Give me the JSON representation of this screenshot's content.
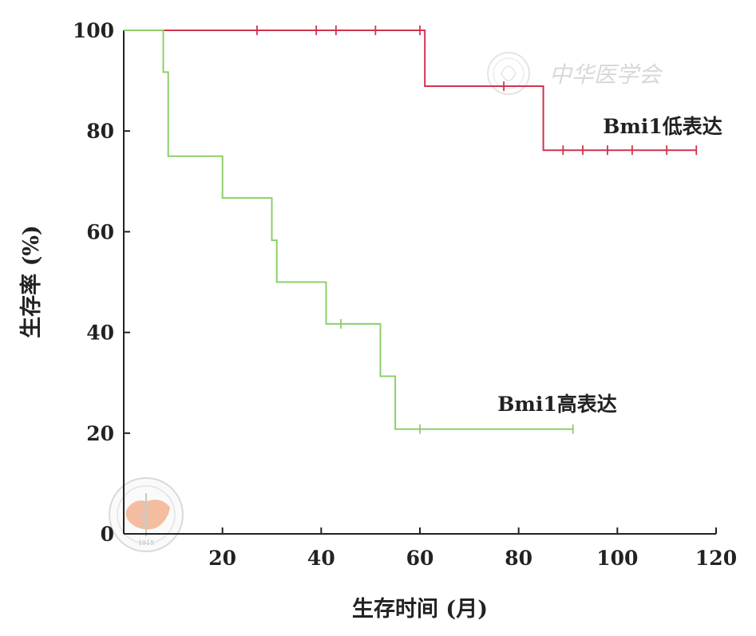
{
  "chart_data": {
    "type": "line",
    "subtype": "kaplan-meier step",
    "xlabel": "生存时间 (月)",
    "ylabel": "生存率 (%)",
    "xlim": [
      0,
      120
    ],
    "ylim": [
      0,
      100
    ],
    "xticks": [
      20,
      40,
      60,
      80,
      100,
      120
    ],
    "yticks": [
      0,
      20,
      40,
      60,
      80,
      100
    ],
    "series": [
      {
        "name": "Bmi1低表达",
        "color": "#d0344a",
        "steps": [
          [
            0,
            100
          ],
          [
            61,
            100
          ],
          [
            61,
            88.9
          ],
          [
            85,
            88.9
          ],
          [
            85,
            76.2
          ],
          [
            116,
            76.2
          ]
        ],
        "censored": [
          [
            27,
            100
          ],
          [
            39,
            100
          ],
          [
            43,
            100
          ],
          [
            51,
            100
          ],
          [
            60,
            100
          ],
          [
            77,
            88.9
          ],
          [
            89,
            76.2
          ],
          [
            93,
            76.2
          ],
          [
            98,
            76.2
          ],
          [
            103,
            76.2
          ],
          [
            110,
            76.2
          ],
          [
            116,
            76.2
          ]
        ]
      },
      {
        "name": "Bmi1高表达",
        "color": "#8ccf6a",
        "steps": [
          [
            0,
            100
          ],
          [
            8,
            100
          ],
          [
            8,
            91.7
          ],
          [
            9,
            91.7
          ],
          [
            9,
            75
          ],
          [
            20,
            75
          ],
          [
            20,
            66.7
          ],
          [
            30,
            66.7
          ],
          [
            30,
            58.3
          ],
          [
            31,
            58.3
          ],
          [
            31,
            50
          ],
          [
            41,
            50
          ],
          [
            41,
            41.7
          ],
          [
            52,
            41.7
          ],
          [
            52,
            31.3
          ],
          [
            55,
            31.3
          ],
          [
            55,
            20.8
          ],
          [
            91,
            20.8
          ]
        ],
        "censored": [
          [
            44,
            41.7
          ],
          [
            60,
            20.8
          ],
          [
            91,
            20.8
          ]
        ]
      }
    ]
  },
  "watermark": {
    "text": "中华医学会",
    "logo_text": "CHINESE MEDICAL ASSOCIATION",
    "logo_year": "1915"
  }
}
